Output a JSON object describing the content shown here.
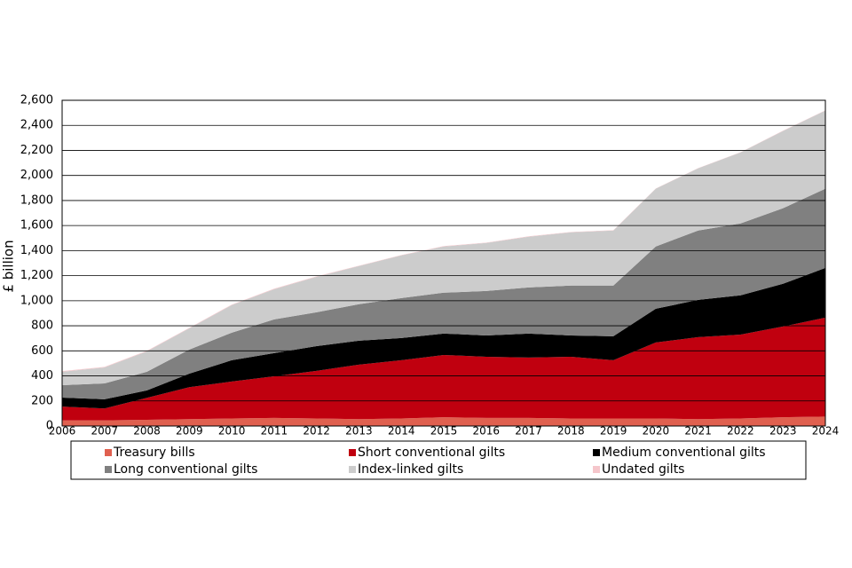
{
  "chart_data": {
    "type": "stacked-area",
    "y_label": "£ billion",
    "categories": [
      "2006",
      "2007",
      "2008",
      "2009",
      "2010",
      "2011",
      "2012",
      "2013",
      "2014",
      "2015",
      "2016",
      "2017",
      "2018",
      "2019",
      "2020",
      "2021",
      "2022",
      "2023",
      "2024"
    ],
    "series": [
      {
        "name": "Treasury bills",
        "color": "#e0604f",
        "values": [
          45,
          45,
          50,
          55,
          60,
          65,
          60,
          55,
          60,
          70,
          65,
          65,
          60,
          60,
          60,
          55,
          60,
          70,
          75
        ]
      },
      {
        "name": "Short conventional gilts",
        "color": "#c0000f",
        "values": [
          110,
          95,
          175,
          255,
          295,
          332,
          380,
          435,
          465,
          497,
          488,
          481,
          493,
          465,
          607,
          654,
          670,
          724,
          790
        ]
      },
      {
        "name": "Medium conventional gilts",
        "color": "#000000",
        "values": [
          72,
          73,
          59,
          108,
          170,
          185,
          198,
          191,
          177,
          171,
          170,
          192,
          170,
          191,
          269,
          298,
          313,
          341,
          397
        ]
      },
      {
        "name": "Long conventional gilts",
        "color": "#808080",
        "values": [
          99,
          127,
          149,
          192,
          220,
          269,
          270,
          291,
          319,
          326,
          355,
          368,
          398,
          405,
          497,
          553,
          574,
          603,
          632
        ]
      },
      {
        "name": "Index-linked gilts",
        "color": "#cccccc",
        "values": [
          107,
          128,
          163,
          170,
          220,
          241,
          283,
          305,
          341,
          369,
          383,
          405,
          425,
          439,
          461,
          497,
          567,
          617,
          624
        ]
      },
      {
        "name": "Undated gilts",
        "color": "#f5c6cb",
        "values": [
          5,
          4,
          4,
          4,
          4,
          4,
          4,
          3,
          3,
          3,
          3,
          3,
          3,
          3,
          2,
          2,
          2,
          2,
          2
        ]
      }
    ],
    "ylim": [
      0,
      2600
    ],
    "yticks": [
      0,
      200,
      400,
      600,
      800,
      {
        "value": 1000,
        "label": "1,000"
      },
      {
        "value": 1200,
        "label": "1,200"
      },
      {
        "value": 1400,
        "label": "1,400"
      },
      {
        "value": 1600,
        "label": "1,600"
      },
      {
        "value": 1800,
        "label": "1,800"
      },
      {
        "value": 2000,
        "label": "2,000"
      },
      {
        "value": 2200,
        "label": "2,200"
      },
      {
        "value": 2400,
        "label": "2,400"
      },
      {
        "value": 2600,
        "label": "2,600"
      }
    ],
    "grid": true
  }
}
